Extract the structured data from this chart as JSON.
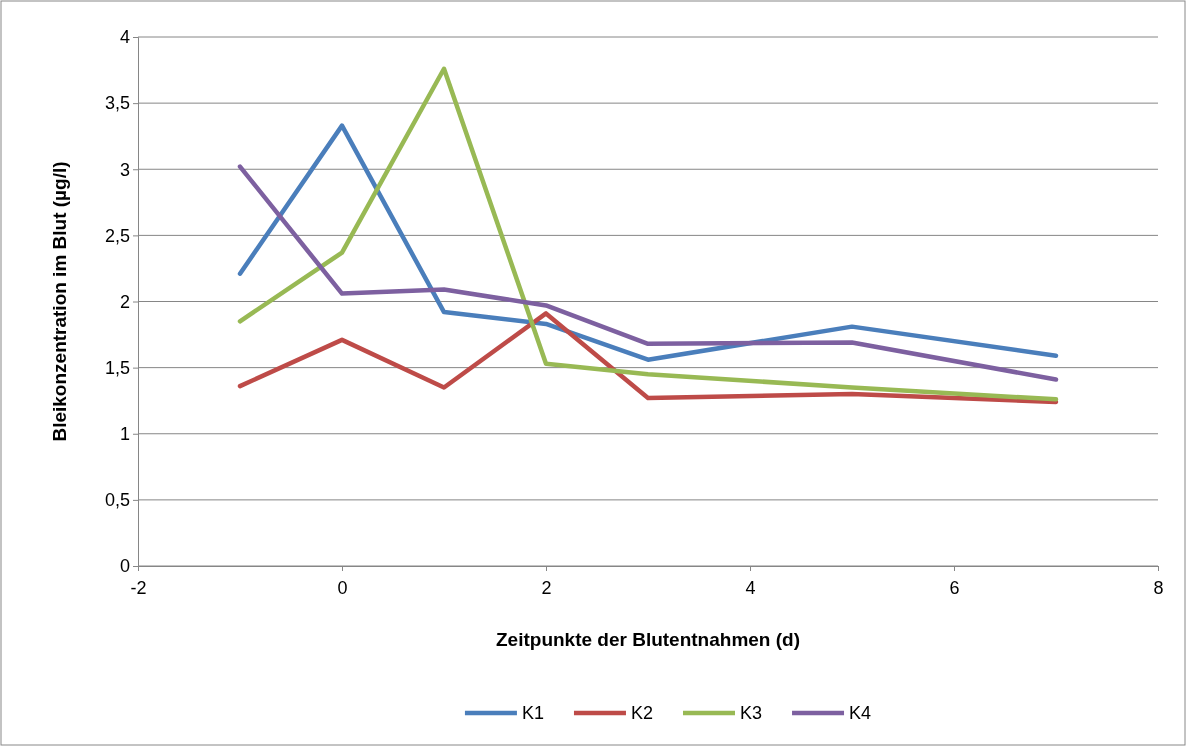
{
  "chart_data": {
    "type": "line",
    "xlabel": "Zeitpunkte der Blutentnahmen (d)",
    "ylabel": "Bleikonzentration im Blut (µg/l)",
    "x": [
      -1,
      0,
      1,
      2,
      3,
      5,
      7
    ],
    "series": [
      {
        "name": "K1",
        "color": "#4a7ebb",
        "values": [
          2.21,
          3.33,
          1.92,
          1.83,
          1.56,
          1.81,
          1.59
        ]
      },
      {
        "name": "K2",
        "color": "#be4b48",
        "values": [
          1.36,
          1.71,
          1.35,
          1.91,
          1.27,
          1.3,
          1.24
        ]
      },
      {
        "name": "K3",
        "color": "#98b954",
        "values": [
          1.85,
          2.37,
          3.76,
          1.53,
          1.45,
          1.35,
          1.26
        ]
      },
      {
        "name": "K4",
        "color": "#7d60a0",
        "values": [
          3.02,
          2.06,
          2.09,
          1.97,
          1.68,
          1.69,
          1.41
        ]
      }
    ],
    "xlim": [
      -2,
      8
    ],
    "xticks": [
      -2,
      0,
      2,
      4,
      6,
      8
    ],
    "ylim": [
      0,
      4
    ],
    "yticks": [
      0,
      {
        "value": 0.5,
        "label": "0,5"
      },
      1,
      {
        "value": 1.5,
        "label": "1,5"
      },
      2,
      {
        "value": 2.5,
        "label": "2,5"
      },
      3,
      {
        "value": 3.5,
        "label": "3,5"
      },
      4
    ],
    "grid": "y",
    "legend": "bottom",
    "marker": "none",
    "line_style": "solid"
  }
}
